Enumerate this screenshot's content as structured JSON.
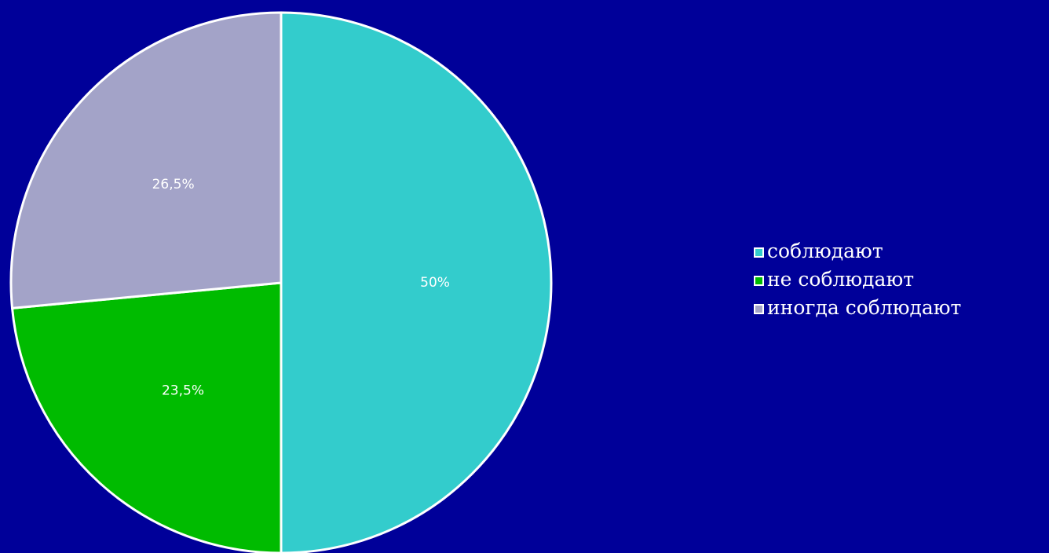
{
  "chart_data": {
    "type": "pie",
    "categories": [
      "соблюдают",
      "не соблюдают",
      "иногда соблюдают"
    ],
    "values": [
      50,
      23.5,
      26.5
    ],
    "data_labels": [
      "50%",
      "23,5%",
      "26,5%"
    ],
    "colors": [
      "#33CCCC",
      "#00BB00",
      "#A3A3C8"
    ],
    "legend_position": "right"
  }
}
